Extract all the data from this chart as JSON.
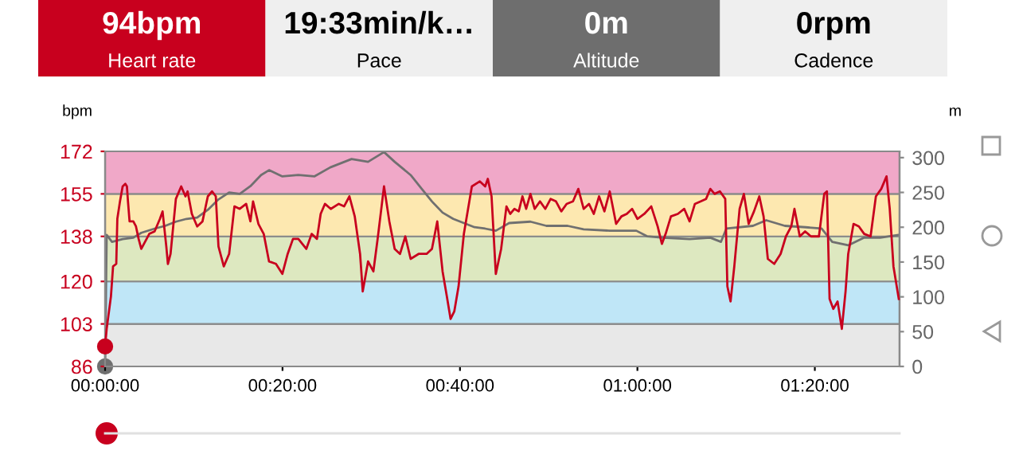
{
  "chart_data": [
    {
      "type": "other",
      "annotations": [
        "94bpm",
        "Heart rate",
        "19:33min/k…",
        "Pace",
        "0m",
        "Altitude",
        "0rpm",
        "Cadence"
      ],
      "colors": [
        "#c8001e",
        "#efefef",
        "#6e6e6e",
        "#efefef"
      ]
    },
    {
      "type": "line",
      "ylabel": "bpm",
      "y2label": "m",
      "xlim": [
        0,
        1.4925
      ],
      "ylim": [
        86,
        172
      ],
      "y2lim": [
        0,
        309
      ],
      "xticks": [
        {
          "value": 0,
          "label": "00:00:00"
        },
        {
          "value": 0.3333,
          "label": "00:20:00"
        },
        {
          "value": 0.6667,
          "label": "00:40:00"
        },
        {
          "value": 1,
          "label": "01:00:00"
        },
        {
          "value": 1.3333,
          "label": "01:20:00"
        }
      ],
      "yticks": [
        86,
        103,
        120,
        138,
        155,
        172
      ],
      "y2ticks": [
        0,
        50,
        100,
        150,
        200,
        250,
        300
      ],
      "bands": [
        {
          "axis": "y",
          "from": 86,
          "to": 103,
          "color": "#e8e8e8"
        },
        {
          "axis": "y",
          "from": 103,
          "to": 120,
          "color": "#bfe6f7"
        },
        {
          "axis": "y",
          "from": 120,
          "to": 138,
          "color": "#dde8c0"
        },
        {
          "axis": "y",
          "from": 138,
          "to": 155,
          "color": "#fde8b0"
        },
        {
          "axis": "y",
          "from": 155,
          "to": 172,
          "color": "#f0a8c8"
        }
      ],
      "grid": false,
      "marker": "none",
      "line_style": "solid",
      "series": [
        {
          "color": "#c8001e",
          "type": "line",
          "x": [
            0,
            0.003,
            0.011,
            0.015,
            0.021,
            0.023,
            0.028,
            0.033,
            0.038,
            0.041,
            0.043,
            0.046,
            0.053,
            0.058,
            0.063,
            0.068,
            0.073,
            0.083,
            0.093,
            0.103,
            0.108,
            0.115,
            0.118,
            0.123,
            0.133,
            0.143,
            0.151,
            0.155,
            0.163,
            0.173,
            0.183,
            0.193,
            0.201,
            0.208,
            0.213,
            0.223,
            0.233,
            0.243,
            0.253,
            0.265,
            0.273,
            0.278,
            0.288,
            0.298,
            0.308,
            0.321,
            0.333,
            0.343,
            0.353,
            0.363,
            0.378,
            0.388,
            0.398,
            0.405,
            0.413,
            0.424,
            0.439,
            0.449,
            0.459,
            0.469,
            0.479,
            0.484,
            0.494,
            0.504,
            0.512,
            0.524,
            0.534,
            0.544,
            0.554,
            0.564,
            0.574,
            0.589,
            0.604,
            0.614,
            0.624,
            0.634,
            0.642,
            0.649,
            0.656,
            0.664,
            0.674,
            0.689,
            0.704,
            0.714,
            0.719,
            0.726,
            0.734,
            0.744,
            0.754,
            0.761,
            0.769,
            0.777,
            0.784,
            0.791,
            0.799,
            0.807,
            0.817,
            0.827,
            0.837,
            0.847,
            0.857,
            0.867,
            0.879,
            0.889,
            0.899,
            0.909,
            0.918,
            0.928,
            0.938,
            0.948,
            0.96,
            0.97,
            0.98,
            0.99,
            1.0,
            1.013,
            1.026,
            1.038,
            1.046,
            1.053,
            1.063,
            1.076,
            1.088,
            1.098,
            1.108,
            1.119,
            1.129,
            1.137,
            1.145,
            1.155,
            1.165,
            1.169,
            1.175,
            1.182,
            1.192,
            1.2,
            1.209,
            1.219,
            1.229,
            1.237,
            1.245,
            1.257,
            1.269,
            1.279,
            1.289,
            1.295,
            1.305,
            1.315,
            1.326,
            1.341,
            1.351,
            1.356,
            1.361,
            1.368,
            1.376,
            1.384,
            1.391,
            1.396,
            1.406,
            1.416,
            1.426,
            1.438,
            1.448,
            1.458,
            1.468,
            1.474,
            1.481,
            1.491
          ],
          "values": [
            94,
            101,
            114,
            126,
            127,
            145,
            152,
            158,
            159,
            158,
            152,
            144,
            144,
            142,
            137,
            133,
            135,
            139,
            140,
            145,
            148,
            134,
            127,
            131,
            153,
            158,
            154,
            156,
            147,
            142,
            144,
            154,
            156,
            154,
            134,
            126,
            131,
            150,
            149,
            151,
            144,
            152,
            143,
            139,
            128,
            127,
            123,
            131,
            137,
            137,
            133,
            139,
            137,
            147,
            151,
            149,
            151,
            150,
            154,
            146,
            131,
            116,
            128,
            124,
            137,
            158,
            144,
            133,
            131,
            138,
            129,
            131,
            131,
            133,
            144,
            124,
            114,
            105,
            108,
            118,
            139,
            158,
            160,
            158,
            161,
            154,
            123,
            133,
            150,
            147,
            149,
            148,
            154,
            149,
            155,
            149,
            152,
            149,
            153,
            152,
            148,
            151,
            152,
            157,
            149,
            151,
            147,
            154,
            148,
            156,
            143,
            146,
            147,
            149,
            145,
            147,
            150,
            142,
            135,
            139,
            146,
            147,
            149,
            144,
            151,
            152,
            153,
            157,
            155,
            156,
            153,
            118,
            112,
            126,
            149,
            155,
            143,
            148,
            154,
            146,
            129,
            127,
            131,
            138,
            142,
            149,
            138,
            140,
            138,
            138,
            155,
            156,
            113,
            109,
            112,
            101,
            116,
            131,
            143,
            142,
            139,
            138,
            154,
            157,
            162,
            149,
            126,
            113
          ]
        },
        {
          "color": "#707070",
          "type": "line",
          "axis": "y2",
          "x": [
            0,
            0.003,
            0.013,
            0.033,
            0.053,
            0.068,
            0.093,
            0.113,
            0.133,
            0.153,
            0.173,
            0.193,
            0.213,
            0.233,
            0.253,
            0.273,
            0.293,
            0.308,
            0.333,
            0.363,
            0.393,
            0.423,
            0.463,
            0.494,
            0.524,
            0.544,
            0.574,
            0.594,
            0.614,
            0.634,
            0.654,
            0.674,
            0.694,
            0.714,
            0.734,
            0.759,
            0.799,
            0.829,
            0.869,
            0.899,
            0.948,
            0.998,
            1.018,
            1.048,
            1.098,
            1.137,
            1.157,
            1.167,
            1.217,
            1.242,
            1.277,
            1.316,
            1.346,
            1.366,
            1.396,
            1.426,
            1.456,
            1.491
          ],
          "values": [
            0,
            189,
            179,
            183,
            185,
            192,
            198,
            202,
            208,
            212,
            214,
            225,
            240,
            250,
            248,
            259,
            275,
            282,
            273,
            275,
            273,
            286,
            298,
            294,
            308,
            294,
            275,
            256,
            237,
            221,
            212,
            206,
            200,
            198,
            195,
            206,
            208,
            202,
            202,
            197,
            195,
            195,
            187,
            185,
            183,
            185,
            179,
            198,
            202,
            210,
            202,
            200,
            198,
            179,
            174,
            185,
            185,
            189
          ]
        },
        {
          "color": "#c8001e",
          "type": "scatter",
          "x": [
            0
          ],
          "values": [
            94
          ],
          "marker": "circle"
        },
        {
          "color": "#707070",
          "type": "scatter",
          "axis": "y2",
          "x": [
            0
          ],
          "values": [
            0
          ],
          "marker": "circle"
        }
      ]
    }
  ]
}
